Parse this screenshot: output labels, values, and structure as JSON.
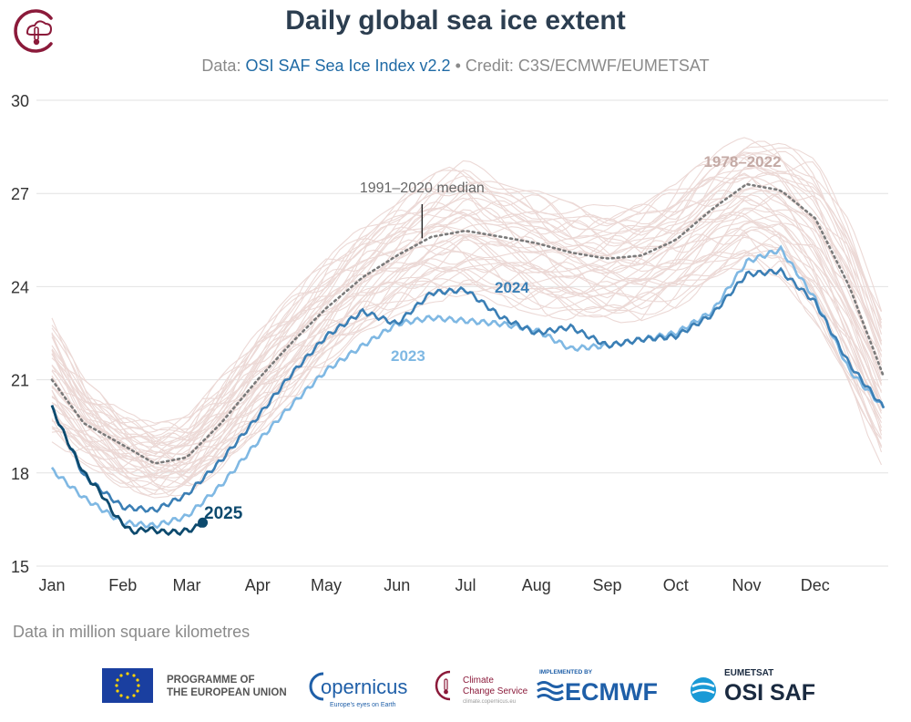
{
  "header": {
    "title": "Daily global sea ice extent",
    "subtitle_prefix": "Data: ",
    "subtitle_link": "OSI SAF Sea Ice Index v2.2",
    "subtitle_suffix": " • Credit: C3S/ECMWF/EUMETSAT"
  },
  "footnote": "Data in million square kilometres",
  "logos": {
    "eu_line1": "PROGRAMME OF",
    "eu_line2": "THE EUROPEAN UNION",
    "copernicus": "opernicus",
    "copernicus_tag": "Europe's eyes on Earth",
    "c3s_line1": "Climate",
    "c3s_line2": "Change Service",
    "c3s_url": "climate.copernicus.eu",
    "ecmwf_small": "IMPLEMENTED BY",
    "ecmwf": "ECMWF",
    "eumetsat": "EUMETSAT",
    "osisaf": "OSI SAF"
  },
  "colors": {
    "historical": "#ecd9d6",
    "median": "#7a7a7a",
    "y2023": "#7fb8e3",
    "y2024": "#3b7fb5",
    "y2025": "#0d4a6e",
    "label1978": "#c4aaa5",
    "title": "#2c3e50",
    "copernicus_red": "#8b1a3a",
    "ecmwf_blue": "#1f5fa8"
  },
  "chart_data": {
    "type": "line",
    "ylim": [
      15,
      30
    ],
    "yticks": [
      "15",
      "18",
      "21",
      "24",
      "27",
      "30"
    ],
    "months": [
      "Jan",
      "Feb",
      "Mar",
      "Apr",
      "May",
      "Jun",
      "Jul",
      "Aug",
      "Sep",
      "Oct",
      "Nov",
      "Dec"
    ],
    "month_start_day": [
      1,
      32,
      60,
      91,
      121,
      152,
      182,
      213,
      244,
      274,
      305,
      335
    ],
    "annotations": {
      "median": "1991–2020 median",
      "range": "1978–2022",
      "y2023": "2023",
      "y2024": "2024",
      "y2025": "2025"
    },
    "median": {
      "day": [
        1,
        15,
        32,
        46,
        60,
        75,
        91,
        106,
        121,
        137,
        152,
        167,
        182,
        198,
        213,
        228,
        244,
        259,
        274,
        290,
        305,
        320,
        335,
        350,
        365
      ],
      "value": [
        21.0,
        19.6,
        18.9,
        18.3,
        18.5,
        19.6,
        21.0,
        22.2,
        23.3,
        24.3,
        25.0,
        25.6,
        25.8,
        25.6,
        25.4,
        25.1,
        24.9,
        25.0,
        25.5,
        26.5,
        27.3,
        27.1,
        26.2,
        24.0,
        21.1
      ]
    },
    "band": {
      "day": [
        1,
        15,
        32,
        46,
        60,
        75,
        91,
        106,
        121,
        137,
        152,
        167,
        182,
        198,
        213,
        228,
        244,
        259,
        274,
        290,
        305,
        320,
        335,
        350,
        365
      ],
      "low": [
        19.2,
        18.5,
        17.7,
        17.4,
        17.5,
        18.3,
        19.4,
        20.5,
        21.6,
        22.6,
        23.3,
        23.7,
        23.8,
        23.6,
        23.3,
        23.1,
        23.0,
        23.1,
        23.5,
        24.2,
        24.8,
        24.5,
        23.0,
        20.7,
        18.3
      ],
      "high": [
        22.8,
        20.8,
        19.8,
        19.4,
        19.6,
        20.9,
        22.4,
        23.6,
        24.7,
        25.8,
        26.6,
        27.4,
        27.9,
        27.3,
        26.9,
        26.5,
        26.4,
        26.6,
        27.1,
        28.1,
        28.7,
        28.5,
        27.9,
        26.0,
        23.0
      ]
    },
    "series": [
      {
        "name": "2023",
        "day": [
          1,
          15,
          32,
          46,
          60,
          75,
          91,
          106,
          121,
          137,
          152,
          167,
          182,
          198,
          213,
          228,
          244,
          259,
          274,
          290,
          305,
          320,
          335,
          350,
          365
        ],
        "value": [
          18.1,
          17.2,
          16.4,
          16.3,
          16.6,
          17.6,
          19.0,
          20.2,
          21.3,
          22.1,
          22.8,
          23.0,
          22.9,
          22.8,
          22.6,
          22.0,
          22.1,
          22.3,
          22.5,
          23.2,
          24.8,
          25.2,
          23.6,
          21.3,
          20.1
        ]
      },
      {
        "name": "2024",
        "day": [
          1,
          15,
          32,
          46,
          60,
          75,
          91,
          106,
          121,
          137,
          152,
          167,
          182,
          198,
          213,
          228,
          244,
          259,
          274,
          290,
          305,
          320,
          335,
          350,
          365
        ],
        "value": [
          20.1,
          17.9,
          16.9,
          16.8,
          17.3,
          18.4,
          19.8,
          21.2,
          22.4,
          23.2,
          22.8,
          23.8,
          23.9,
          23.0,
          22.5,
          22.7,
          22.1,
          22.3,
          22.4,
          23.1,
          24.4,
          24.5,
          23.5,
          21.5,
          20.1
        ]
      },
      {
        "name": "2025",
        "day": [
          1,
          8,
          15,
          22,
          29,
          36,
          43,
          50,
          57,
          63,
          67
        ],
        "value": [
          20.1,
          19.0,
          18.0,
          17.4,
          16.6,
          16.1,
          16.2,
          16.1,
          16.1,
          16.2,
          16.4
        ]
      }
    ]
  }
}
